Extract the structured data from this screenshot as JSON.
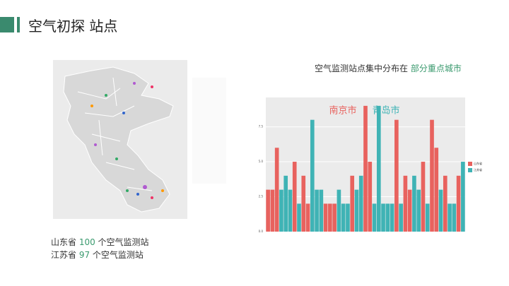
{
  "header": {
    "title": "空气初探 站点"
  },
  "caption": {
    "text": "空气监测站点集中分布在 ",
    "highlight": "部分重点城市"
  },
  "stats": [
    {
      "prefix": "山东省 ",
      "count": 100,
      "suffix": " 个空气监测站"
    },
    {
      "prefix": "江苏省 ",
      "count": 97,
      "suffix": " 个空气监测站"
    }
  ],
  "chart_data": {
    "type": "bar",
    "categories": [
      null,
      null,
      null,
      null,
      null,
      null,
      null,
      null,
      null,
      null,
      null,
      null,
      null,
      null,
      null,
      null,
      null,
      null,
      null,
      null,
      null,
      null,
      null,
      null,
      null,
      null,
      null,
      null,
      null,
      null,
      null,
      null,
      null,
      null,
      null,
      null,
      null,
      null,
      null,
      null,
      null,
      null,
      null,
      null,
      null
    ],
    "series": [
      {
        "name": "山东省",
        "color": "#e8625e",
        "values": [
          3,
          3,
          6,
          null,
          null,
          null,
          5,
          null,
          4,
          2,
          null,
          null,
          null,
          2,
          2,
          2,
          null,
          null,
          null,
          4,
          null,
          null,
          9,
          5,
          null,
          null,
          null,
          null,
          null,
          8,
          null,
          4,
          3,
          null,
          null,
          5,
          null,
          8,
          6,
          null,
          4,
          null,
          null,
          4,
          null
        ]
      },
      {
        "name": "江苏省",
        "color": "#3fb3b5",
        "values": [
          null,
          null,
          null,
          3,
          4,
          3,
          null,
          2,
          null,
          null,
          8,
          3,
          3,
          null,
          null,
          null,
          3,
          2,
          2,
          null,
          3,
          4,
          null,
          null,
          2,
          9,
          2,
          2,
          2,
          null,
          2,
          null,
          null,
          4,
          3,
          null,
          2,
          null,
          null,
          3,
          null,
          2,
          2,
          null,
          5
        ]
      }
    ],
    "annotations": [
      {
        "text": "南京市",
        "color": "#e8625e"
      },
      {
        "text": "青岛市",
        "color": "#3fb3b5"
      }
    ],
    "ylim": [
      0,
      9.6
    ],
    "yticks": [
      {
        "value": 0,
        "label": "0.0"
      },
      {
        "value": 2.5,
        "label": "2.5"
      },
      {
        "value": 5,
        "label": "5.0"
      },
      {
        "value": 7.5,
        "label": "7.5"
      }
    ],
    "grid": true
  }
}
